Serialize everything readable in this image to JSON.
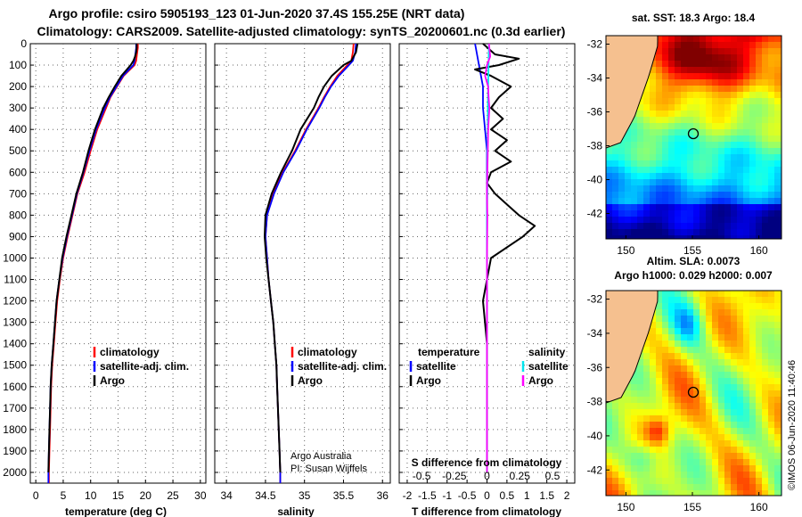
{
  "header": {
    "line1": "Argo profile: csiro 5905193_123 01-Jun-2020 37.4S 155.25E (NRT data)",
    "line2": "Climatology: CARS2009. Satellite-adjusted climatology: synTS_20200601.nc (0.3d earlier)"
  },
  "colors": {
    "climatology": "#ff0000",
    "satellite_adj": "#0000ff",
    "argo": "#000000",
    "salinity_satellite": "#00e5ee",
    "salinity_argo": "#ff00ff",
    "land": "#f5c08f"
  },
  "depth_axis": {
    "ticks": [
      "0",
      "100",
      "200",
      "300",
      "400",
      "500",
      "600",
      "700",
      "800",
      "900",
      "1000",
      "1100",
      "1200",
      "1300",
      "1400",
      "1500",
      "1600",
      "1700",
      "1800",
      "1900",
      "2000"
    ],
    "range": [
      0,
      2050
    ]
  },
  "temperature_panel": {
    "xlabel": "temperature (deg C)",
    "xticks": [
      "0",
      "5",
      "10",
      "15",
      "20",
      "25",
      "30"
    ],
    "xrange": [
      -1,
      31
    ],
    "legend": [
      "climatology",
      "satellite-adj. clim.",
      "Argo"
    ]
  },
  "salinity_panel": {
    "xlabel": "salinity",
    "xticks": [
      "34",
      "34.5",
      "35",
      "35.5",
      "36"
    ],
    "xrange": [
      33.85,
      36.1
    ],
    "legend": [
      "climatology",
      "satellite-adj. clim.",
      "Argo"
    ],
    "credit1": "Argo Australia",
    "credit2": "PI: Susan Wijffels"
  },
  "difference_panel": {
    "xlabel": "T difference from climatology",
    "xticks": [
      "-2",
      "-1.5",
      "-1",
      "-0.5",
      "0",
      "0.5",
      "1",
      "1.5",
      "2"
    ],
    "xrange": [
      -2.2,
      2.2
    ],
    "secondary_label": "S difference from climatology",
    "secondary_ticks": [
      "-0.5",
      "-0.25",
      "0",
      "0.25",
      "0.5"
    ],
    "legend_left_title": "temperature",
    "legend_left": [
      "satellite",
      "Argo"
    ],
    "legend_right_title": "salinity",
    "legend_right": [
      "satellite",
      "Argo"
    ]
  },
  "sst_map": {
    "title": "sat. SST: 18.3 Argo: 18.4",
    "yticks": [
      "-32",
      "-34",
      "-36",
      "-38",
      "-40",
      "-42"
    ],
    "xticks": [
      "150",
      "155",
      "160"
    ]
  },
  "sla_map": {
    "title1": "Altim. SLA: 0.0073",
    "title2": "Argo h1000: 0.029 h2000: 0.007",
    "yticks": [
      "-32",
      "-34",
      "-36",
      "-38",
      "-40",
      "-42"
    ],
    "xticks": [
      "150",
      "155",
      "160"
    ]
  },
  "watermark": "©IMOS 06-Jun-2020 11:40:46",
  "chart_data": [
    {
      "type": "line",
      "title": "temperature",
      "xlabel": "temperature (deg C)",
      "ylabel": "depth",
      "xlim": [
        -1,
        31
      ],
      "ylim": [
        0,
        2050
      ],
      "series": [
        {
          "name": "climatology",
          "depth": [
            0,
            20,
            40,
            60,
            80,
            100,
            150,
            200,
            250,
            300,
            400,
            500,
            600,
            700,
            800,
            900,
            1000,
            1100,
            1200,
            1300,
            1400,
            1500,
            1600,
            1700,
            1800,
            1900,
            2000,
            2050
          ],
          "values": [
            18.6,
            18.6,
            18.5,
            18.4,
            18.3,
            18.0,
            16.0,
            14.8,
            13.6,
            12.8,
            11.2,
            10.0,
            8.9,
            7.6,
            6.7,
            5.8,
            5.0,
            4.4,
            3.9,
            3.6,
            3.3,
            3.0,
            2.8,
            2.7,
            2.6,
            2.5,
            2.4,
            2.4
          ]
        },
        {
          "name": "satellite-adj. clim.",
          "depth": [
            0,
            20,
            40,
            60,
            80,
            100,
            150,
            200,
            250,
            300,
            400,
            500,
            600,
            700,
            800,
            900,
            1000,
            1100,
            1200,
            1300,
            1400,
            1500,
            1600,
            1700,
            1800,
            1900,
            2000,
            2050
          ],
          "values": [
            18.3,
            18.3,
            18.2,
            18.1,
            18.0,
            17.8,
            15.9,
            14.7,
            13.5,
            12.6,
            11.0,
            9.8,
            8.7,
            7.5,
            6.6,
            5.7,
            4.9,
            4.3,
            3.8,
            3.5,
            3.2,
            2.9,
            2.7,
            2.6,
            2.5,
            2.4,
            2.3,
            2.3
          ]
        },
        {
          "name": "Argo",
          "depth": [
            0,
            20,
            40,
            60,
            80,
            100,
            150,
            200,
            250,
            300,
            400,
            500,
            600,
            700,
            800,
            900,
            1000,
            1100,
            1200,
            1300,
            1400,
            1500,
            1600,
            1700,
            1800,
            1900,
            2000
          ],
          "values": [
            18.4,
            18.4,
            18.3,
            18.1,
            17.8,
            17.3,
            15.6,
            14.4,
            13.3,
            12.3,
            10.8,
            9.6,
            8.6,
            7.4,
            6.5,
            5.6,
            4.8,
            4.3,
            3.8,
            3.5,
            3.2,
            2.9,
            2.7,
            2.6,
            2.5,
            2.4,
            2.3
          ]
        }
      ]
    },
    {
      "type": "line",
      "title": "salinity",
      "xlabel": "salinity",
      "ylabel": "depth",
      "xlim": [
        33.85,
        36.1
      ],
      "ylim": [
        0,
        2050
      ],
      "series": [
        {
          "name": "climatology",
          "depth": [
            0,
            40,
            80,
            100,
            150,
            200,
            250,
            300,
            400,
            500,
            600,
            700,
            800,
            900,
            1000,
            1100,
            1200,
            1300,
            1400,
            1500,
            1600,
            1700,
            1800,
            1900,
            2000,
            2050
          ],
          "values": [
            35.63,
            35.62,
            35.6,
            35.55,
            35.42,
            35.33,
            35.25,
            35.18,
            35.02,
            34.88,
            34.72,
            34.6,
            34.52,
            34.5,
            34.52,
            34.54,
            34.57,
            34.6,
            34.62,
            34.64,
            34.65,
            34.66,
            34.67,
            34.68,
            34.69,
            34.69
          ]
        },
        {
          "name": "satellite-adj. clim.",
          "depth": [
            0,
            40,
            80,
            100,
            150,
            200,
            250,
            300,
            400,
            500,
            600,
            700,
            800,
            900,
            1000,
            1100,
            1200,
            1300,
            1400,
            1500,
            1600,
            1700,
            1800,
            1900,
            2000,
            2050
          ],
          "values": [
            35.66,
            35.65,
            35.62,
            35.57,
            35.44,
            35.34,
            35.26,
            35.19,
            35.03,
            34.89,
            34.73,
            34.61,
            34.52,
            34.5,
            34.52,
            34.54,
            34.57,
            34.6,
            34.62,
            34.64,
            34.65,
            34.66,
            34.67,
            34.68,
            34.69,
            34.69
          ]
        },
        {
          "name": "Argo",
          "depth": [
            0,
            40,
            80,
            100,
            150,
            200,
            250,
            300,
            400,
            500,
            600,
            700,
            800,
            900,
            1000,
            1100,
            1200,
            1300,
            1400,
            1500,
            1600,
            1700,
            1800,
            1900,
            2000
          ],
          "values": [
            35.68,
            35.66,
            35.6,
            35.5,
            35.35,
            35.25,
            35.18,
            35.12,
            34.95,
            34.84,
            34.7,
            34.58,
            34.5,
            34.49,
            34.51,
            34.54,
            34.57,
            34.6,
            34.62,
            34.64,
            34.65,
            34.66,
            34.67,
            34.68,
            34.69
          ]
        }
      ]
    },
    {
      "type": "line",
      "title": "T difference from climatology",
      "xlabel": "T difference from climatology",
      "ylabel": "depth",
      "xlim": [
        -2.2,
        2.2
      ],
      "ylim": [
        0,
        2050
      ],
      "series": [
        {
          "name": "temperature satellite",
          "depth": [
            0,
            100,
            200,
            300,
            400,
            500,
            600,
            700,
            800,
            900,
            1000,
            1200,
            1400,
            1600,
            1800,
            2000
          ],
          "values": [
            -0.3,
            -0.2,
            -0.1,
            -0.1,
            -0.05,
            0,
            0,
            0,
            0,
            0,
            0,
            0,
            0,
            0,
            0,
            0
          ]
        },
        {
          "name": "temperature Argo",
          "depth": [
            0,
            50,
            70,
            100,
            120,
            150,
            200,
            250,
            300,
            350,
            400,
            450,
            500,
            550,
            600,
            650,
            700,
            750,
            800,
            850,
            900,
            1000,
            1100,
            1200,
            1400,
            1600,
            1800,
            2000
          ],
          "values": [
            -0.1,
            0.2,
            0.8,
            0.3,
            -0.3,
            0.1,
            0.6,
            0.3,
            0.1,
            0.4,
            0.1,
            0.5,
            0.2,
            0.6,
            0.1,
            0.0,
            0.2,
            0.5,
            0.8,
            1.2,
            0.9,
            0.1,
            0.0,
            -0.1,
            0.0,
            0.0,
            0.0,
            0.0
          ]
        },
        {
          "name": "salinity satellite",
          "depth": [
            0,
            100,
            200,
            300,
            400,
            500,
            600,
            700,
            800,
            1000,
            1200,
            1400,
            1600,
            1800,
            2000
          ],
          "values": [
            0.05,
            0.04,
            0.03,
            0.02,
            0.02,
            0.01,
            0.01,
            0.01,
            0.0,
            0.0,
            0.0,
            0.0,
            0.0,
            0.0,
            0.0
          ]
        },
        {
          "name": "salinity Argo",
          "depth": [
            0,
            60,
            100,
            150,
            200,
            250,
            300,
            400,
            500,
            600,
            700,
            800,
            1000,
            1200,
            1400,
            1600,
            1800,
            2000
          ],
          "values": [
            0.05,
            0.08,
            0.0,
            -0.05,
            0.03,
            0.04,
            0.06,
            0.03,
            0.02,
            0.01,
            0.0,
            0.01,
            0.0,
            0.0,
            0.0,
            0.0,
            0.0,
            0.0
          ]
        }
      ]
    }
  ]
}
